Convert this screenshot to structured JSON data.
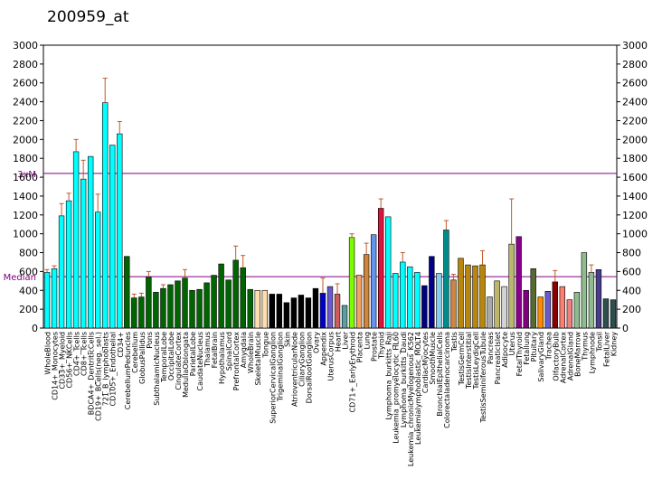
{
  "chart_data": {
    "type": "bar",
    "title": "200959_at",
    "xlabel": "",
    "ylabel": "",
    "ylim": [
      0,
      3000
    ],
    "yticks": [
      0,
      200,
      400,
      600,
      800,
      1000,
      1200,
      1400,
      1600,
      1800,
      2000,
      2200,
      2400,
      2600,
      2800,
      3000
    ],
    "grid": false,
    "reference_lines": [
      {
        "label": "3xM",
        "value": 1640,
        "color": "#800080"
      },
      {
        "label": "Median",
        "value": 545,
        "color": "#800080"
      }
    ],
    "categories": [
      "WholeBlood",
      "CD14+_Monocytes",
      "CD33+_Myeloid",
      "CD56+_NKCells",
      "CD4+_Tcells",
      "CD8+_Tcells",
      "BDCA4+_DentriticCells",
      "CD19+_BCells(neg._sel.)",
      "721_B_lymphoblasts",
      "CD105+_Endothelial",
      "CD34+",
      "CerebellumPeduncles",
      "Cerebellum",
      "GlobusPallidus",
      "Pons",
      "SubthalamicNucleus",
      "TemporalLobe",
      "OccipitalLobe",
      "CingulateCortex",
      "MedullaOblongata",
      "ParietalLobe",
      "CaudateNucleus",
      "Thalamus",
      "FetalBrain",
      "Hypothalamus",
      "SpinalCord",
      "PrefrontalCortex",
      "Amygdala",
      "WholeBrain",
      "SkeletalMuscle",
      "Tongue",
      "SuperiorCervicalGanglion",
      "TrigeminalGanglion",
      "Skin",
      "AtrioventricularNode",
      "CiliaryGanglion",
      "DorsalRootGanglion",
      "Ovary",
      "Appendix",
      "UterusCorpus",
      "Heart",
      "Liver",
      "CD71+_EarlyErythroid",
      "Placenta",
      "Lung",
      "Prostate",
      "Thyroid",
      "Lymphoma_burkitts_Raji",
      "Leukemia_promyelocytic_HL60",
      "Lymphoma_burkitts_Daudi",
      "Leukemia_chronicMyelogenous_K562",
      "Leukemialymphoblastic_MOLT4",
      "CardiacMyocytes",
      "SmoothMuscle",
      "BronchialEpithelialCells",
      "Colorectaladenocarcinoma",
      "Testis",
      "TestisGermCell",
      "TestisInterstitial",
      "TestisLeydigCell",
      "TestisSeminiferousTubule",
      "Pancreas",
      "PancreaticIslet",
      "Adipocyte",
      "Uterus",
      "FetalThyroid",
      "Fetallung",
      "Pituitary",
      "SalivaryGland",
      "Trachea",
      "OlfactoryBulb",
      "AdrenalCortex",
      "AdrenalGland",
      "BoneMarrow",
      "Thymus",
      "Lymphnode",
      "Tonsil",
      "FetalLiver",
      "Kidney"
    ],
    "values": [
      590,
      630,
      1190,
      1350,
      1870,
      1580,
      1820,
      1230,
      2390,
      1940,
      2060,
      760,
      320,
      330,
      540,
      380,
      420,
      460,
      500,
      530,
      400,
      410,
      480,
      560,
      680,
      510,
      720,
      640,
      410,
      400,
      400,
      360,
      360,
      270,
      320,
      350,
      320,
      420,
      370,
      440,
      360,
      240,
      960,
      560,
      780,
      990,
      1270,
      1180,
      580,
      700,
      650,
      590,
      450,
      760,
      580,
      1040,
      510,
      740,
      670,
      660,
      670,
      330,
      500,
      440,
      890,
      970,
      400,
      630,
      330,
      390,
      490,
      440,
      300,
      380,
      800,
      590,
      620,
      310,
      300
    ],
    "errors": [
      30,
      30,
      130,
      80,
      130,
      200,
      0,
      190,
      260,
      0,
      130,
      0,
      40,
      40,
      60,
      0,
      40,
      0,
      0,
      90,
      0,
      0,
      0,
      0,
      0,
      0,
      150,
      130,
      0,
      0,
      0,
      0,
      0,
      0,
      0,
      0,
      0,
      0,
      160,
      0,
      110,
      0,
      40,
      0,
      120,
      0,
      100,
      0,
      0,
      100,
      0,
      0,
      0,
      0,
      0,
      100,
      60,
      0,
      0,
      0,
      150,
      0,
      0,
      0,
      480,
      0,
      0,
      0,
      0,
      0,
      120,
      0,
      0,
      0,
      0,
      80,
      0,
      0,
      0
    ],
    "colors": [
      "#00ffff",
      "#00ffff",
      "#00ffff",
      "#00ffff",
      "#00ffff",
      "#00ffff",
      "#00ffff",
      "#00ffff",
      "#00ffff",
      "#00ffff",
      "#00ffff",
      "#006400",
      "#006400",
      "#006400",
      "#006400",
      "#006400",
      "#006400",
      "#006400",
      "#006400",
      "#006400",
      "#006400",
      "#006400",
      "#006400",
      "#006400",
      "#006400",
      "#006400",
      "#006400",
      "#006400",
      "#006400",
      "#ffdead",
      "#ffdead",
      "#000000",
      "#000000",
      "#000000",
      "#000000",
      "#000000",
      "#000000",
      "#000000",
      "#0000cd",
      "#6a5acd",
      "#cd5c5c",
      "#5f9ea0",
      "#7cfc00",
      "#f4a460",
      "#cd853f",
      "#6495ed",
      "#dc143c",
      "#00ffff",
      "#00ffff",
      "#00ffff",
      "#00ffff",
      "#00ffff",
      "#000080",
      "#00008b",
      "#87ceeb",
      "#008b8b",
      "#cd853f",
      "#b8860b",
      "#b8860b",
      "#b8860b",
      "#b8860b",
      "#a9a9a9",
      "#bdb76b",
      "#d3d3d3",
      "#bdb76b",
      "#8b008b",
      "#800080",
      "#556b2f",
      "#ff8c00",
      "#6a5acd",
      "#8b0000",
      "#fa8072",
      "#f08080",
      "#8fbc8f",
      "#8fbc8f",
      "#8fbc8f",
      "#483d8b",
      "#2f4f4f",
      "#2f4f4f"
    ]
  }
}
